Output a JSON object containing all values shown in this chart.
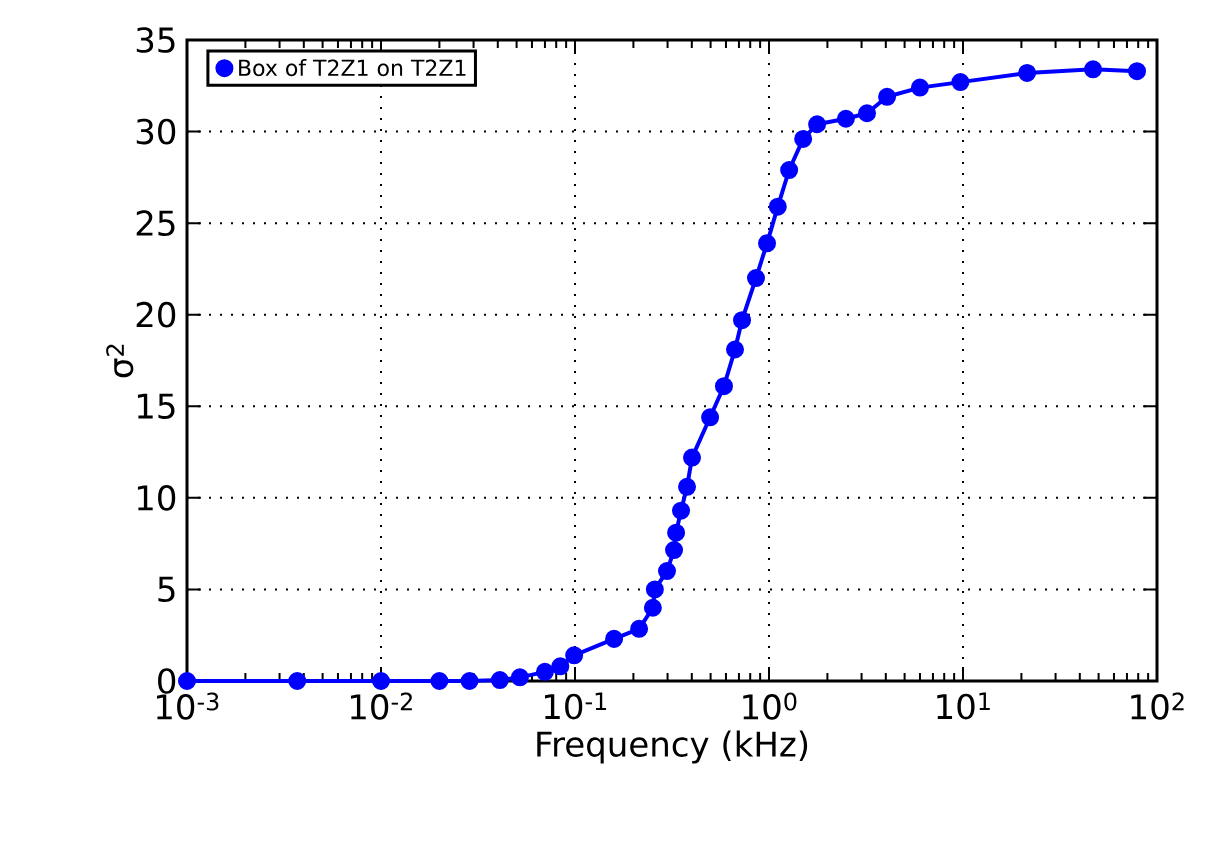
{
  "chart_data": {
    "type": "line",
    "xlabel": "Frequency (kHz)",
    "ylabel": "σ$^{2}$",
    "log": "x",
    "xlim": [
      0.001,
      100
    ],
    "ylim": [
      0,
      35
    ],
    "xticks": [
      {
        "value": 0.001,
        "label": "10$^{-3}$"
      },
      {
        "value": 0.01,
        "label": "10$^{-2}$"
      },
      {
        "value": 0.1,
        "label": "10$^{-1}$"
      },
      {
        "value": 1,
        "label": "10$^{0}$"
      },
      {
        "value": 10,
        "label": "10$^{1}$"
      },
      {
        "value": 100,
        "label": "10$^{2}$"
      }
    ],
    "yticks": [
      0,
      5,
      10,
      15,
      20,
      25,
      30,
      35
    ],
    "grid": true,
    "legend": "top left",
    "marker": "circle",
    "line_style": "solid",
    "series": [
      {
        "name": "Box of T2Z1 on T2Z1",
        "color": "#0000ff",
        "x": [
          0.001,
          0.0037,
          0.01,
          0.02,
          0.0286,
          0.041,
          0.052,
          0.07,
          0.084,
          0.099,
          0.159,
          0.214,
          0.252,
          0.258,
          0.298,
          0.324,
          0.332,
          0.352,
          0.378,
          0.401,
          0.497,
          0.586,
          0.668,
          0.726,
          0.857,
          0.977,
          1.11,
          1.27,
          1.5,
          1.77,
          2.49,
          3.2,
          4.06,
          6.0,
          9.7,
          21.4,
          46.8,
          78.9
        ],
        "values": [
          0,
          0,
          0,
          0,
          0,
          0.05,
          0.2,
          0.5,
          0.8,
          1.4,
          2.3,
          2.85,
          4.0,
          5.0,
          6.0,
          7.15,
          8.1,
          9.3,
          10.6,
          12.2,
          14.4,
          16.1,
          18.1,
          19.7,
          22.0,
          23.9,
          25.9,
          27.9,
          29.6,
          30.4,
          30.7,
          31.0,
          31.9,
          32.4,
          32.7,
          33.2,
          33.4,
          33.3
        ]
      }
    ]
  }
}
